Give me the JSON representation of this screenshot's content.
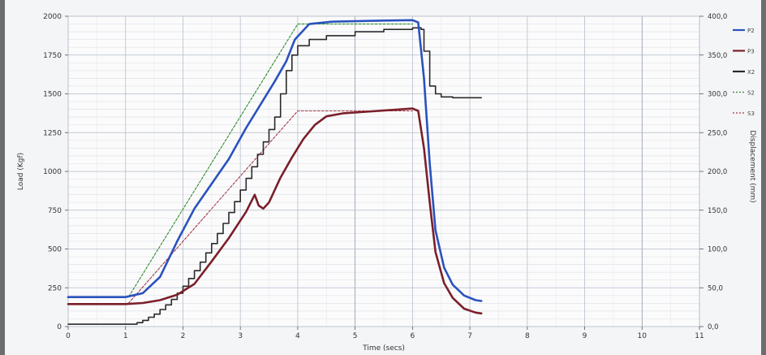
{
  "chart_data": {
    "type": "line",
    "title": "",
    "xlabel": "Time (secs)",
    "ylabel_left": "Load (Kgf)",
    "ylabel_right": "Displacement (mm)",
    "xlim": [
      0,
      11
    ],
    "ylim_left": [
      0,
      2000
    ],
    "ylim_right": [
      0,
      400
    ],
    "x_ticks": [
      "0",
      "1",
      "2",
      "3",
      "4",
      "5",
      "6",
      "7",
      "8",
      "9",
      "10",
      "11"
    ],
    "y_left_ticks": [
      "0",
      "250",
      "500",
      "750",
      "1000",
      "1250",
      "1500",
      "1750",
      "2000"
    ],
    "y_right_ticks": [
      "0,0",
      "50,0",
      "100,0",
      "150,0",
      "200,0",
      "250,0",
      "300,0",
      "350,0",
      "400,0"
    ],
    "grid": true,
    "legend_position": "right",
    "series": [
      {
        "name": "P2",
        "axis": "left",
        "color": "#2a52be",
        "style": "solid",
        "points": [
          [
            0,
            190
          ],
          [
            1,
            190
          ],
          [
            1.3,
            215
          ],
          [
            1.6,
            320
          ],
          [
            1.9,
            550
          ],
          [
            2.2,
            760
          ],
          [
            2.5,
            920
          ],
          [
            2.8,
            1080
          ],
          [
            3.1,
            1280
          ],
          [
            3.4,
            1460
          ],
          [
            3.6,
            1580
          ],
          [
            3.8,
            1710
          ],
          [
            3.95,
            1850
          ],
          [
            4.2,
            1950
          ],
          [
            4.6,
            1965
          ],
          [
            5.0,
            1968
          ],
          [
            5.5,
            1972
          ],
          [
            6.0,
            1975
          ],
          [
            6.1,
            1960
          ],
          [
            6.2,
            1600
          ],
          [
            6.3,
            1050
          ],
          [
            6.4,
            620
          ],
          [
            6.55,
            380
          ],
          [
            6.7,
            270
          ],
          [
            6.9,
            200
          ],
          [
            7.1,
            170
          ],
          [
            7.2,
            165
          ]
        ]
      },
      {
        "name": "P3",
        "axis": "left",
        "color": "#7b1f2a",
        "style": "solid",
        "points": [
          [
            0,
            145
          ],
          [
            1,
            145
          ],
          [
            1.3,
            152
          ],
          [
            1.6,
            170
          ],
          [
            1.9,
            205
          ],
          [
            2.2,
            275
          ],
          [
            2.5,
            420
          ],
          [
            2.8,
            570
          ],
          [
            3.1,
            740
          ],
          [
            3.25,
            850
          ],
          [
            3.32,
            780
          ],
          [
            3.4,
            760
          ],
          [
            3.5,
            800
          ],
          [
            3.7,
            960
          ],
          [
            3.9,
            1090
          ],
          [
            4.1,
            1210
          ],
          [
            4.3,
            1300
          ],
          [
            4.5,
            1355
          ],
          [
            4.8,
            1375
          ],
          [
            5.2,
            1385
          ],
          [
            5.6,
            1395
          ],
          [
            6.0,
            1405
          ],
          [
            6.1,
            1390
          ],
          [
            6.2,
            1150
          ],
          [
            6.3,
            800
          ],
          [
            6.4,
            480
          ],
          [
            6.55,
            280
          ],
          [
            6.7,
            185
          ],
          [
            6.9,
            115
          ],
          [
            7.1,
            90
          ],
          [
            7.2,
            85
          ]
        ]
      },
      {
        "name": "X2",
        "axis": "right",
        "color": "#2a2a2a",
        "style": "step",
        "points": [
          [
            0,
            3
          ],
          [
            1.1,
            3
          ],
          [
            1.2,
            5
          ],
          [
            1.3,
            8
          ],
          [
            1.4,
            12
          ],
          [
            1.5,
            16
          ],
          [
            1.6,
            22
          ],
          [
            1.7,
            28
          ],
          [
            1.8,
            35
          ],
          [
            1.9,
            43
          ],
          [
            2.0,
            52
          ],
          [
            2.1,
            62
          ],
          [
            2.2,
            72
          ],
          [
            2.3,
            83
          ],
          [
            2.4,
            95
          ],
          [
            2.5,
            107
          ],
          [
            2.6,
            120
          ],
          [
            2.7,
            133
          ],
          [
            2.8,
            147
          ],
          [
            2.9,
            161
          ],
          [
            3.0,
            176
          ],
          [
            3.1,
            191
          ],
          [
            3.2,
            206
          ],
          [
            3.3,
            222
          ],
          [
            3.4,
            238
          ],
          [
            3.5,
            254
          ],
          [
            3.6,
            270
          ],
          [
            3.7,
            300
          ],
          [
            3.8,
            330
          ],
          [
            3.9,
            350
          ],
          [
            4.0,
            362
          ],
          [
            4.2,
            370
          ],
          [
            4.5,
            375
          ],
          [
            5.0,
            380
          ],
          [
            5.5,
            383
          ],
          [
            6.0,
            385
          ],
          [
            6.1,
            385
          ],
          [
            6.15,
            383
          ],
          [
            6.2,
            355
          ],
          [
            6.3,
            310
          ],
          [
            6.4,
            300
          ],
          [
            6.5,
            296
          ],
          [
            6.7,
            295
          ],
          [
            7.2,
            295
          ]
        ]
      },
      {
        "name": "S2",
        "axis": "right",
        "color": "#2e8b2e",
        "style": "dashed",
        "points": [
          [
            0,
            38
          ],
          [
            1.05,
            38
          ],
          [
            4.0,
            390
          ],
          [
            6.0,
            390
          ]
        ]
      },
      {
        "name": "S3",
        "axis": "right",
        "color": "#a33a4a",
        "style": "dashed",
        "points": [
          [
            1.05,
            30
          ],
          [
            4.0,
            278
          ],
          [
            6.0,
            278
          ]
        ]
      }
    ]
  }
}
